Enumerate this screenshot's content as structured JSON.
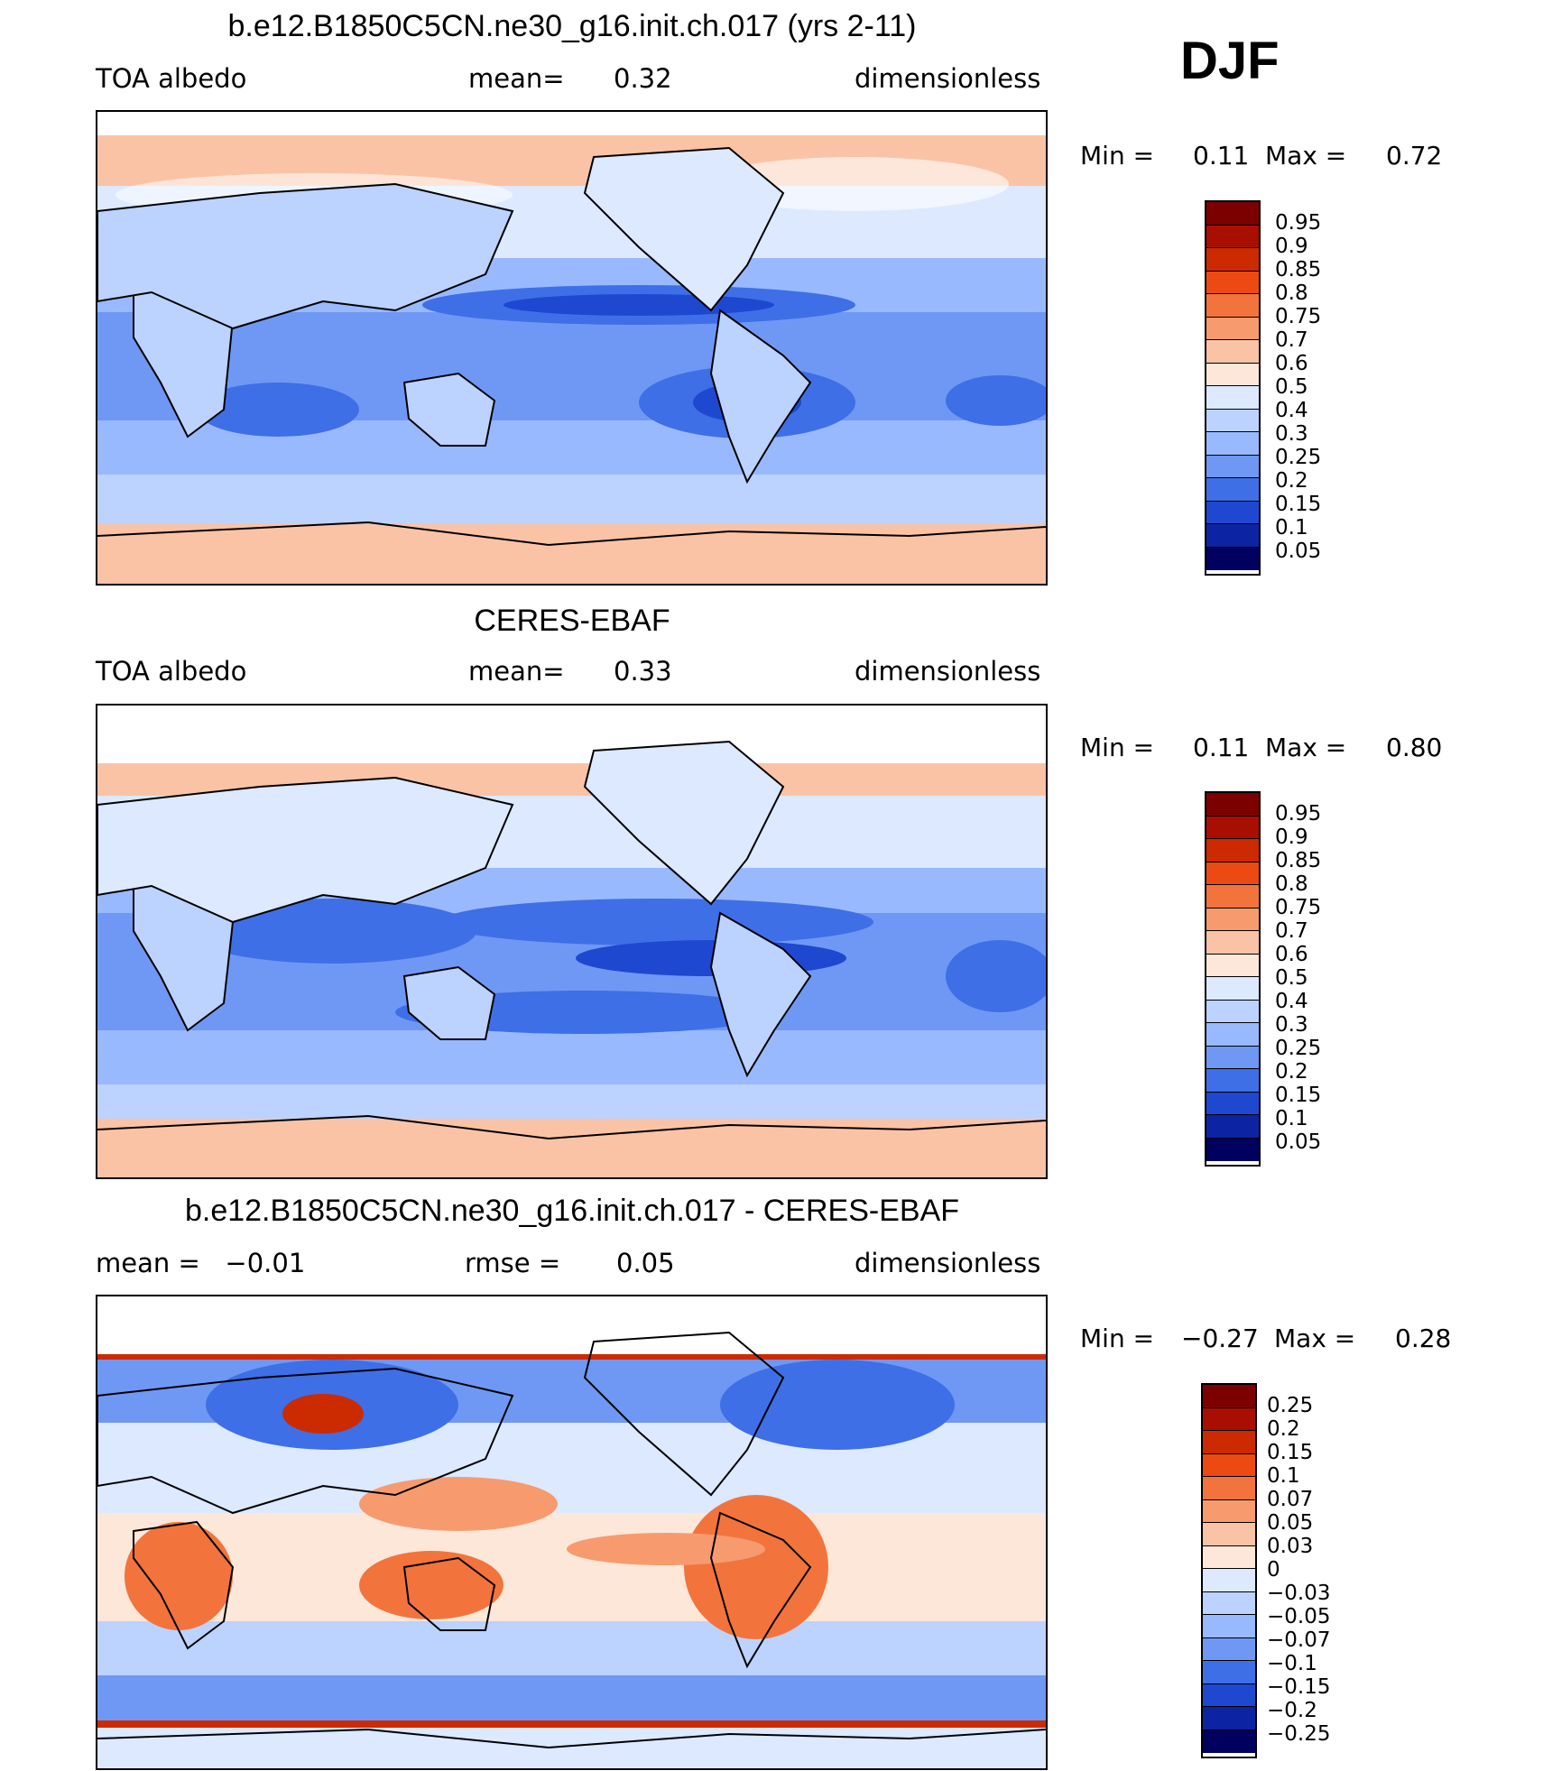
{
  "season": "DJF",
  "panels": [
    {
      "title": "b.e12.B1850C5CN.ne30_g16.init.ch.017 (yrs 2-11)",
      "left": "TOA albedo",
      "mid_label": "mean=",
      "mid_value": "0.32",
      "right": "dimensionless",
      "min_label": "Min =",
      "min_value": "0.11",
      "max_label": "Max =",
      "max_value": "0.72",
      "colorbar": {
        "levels": [
          "0.95",
          "0.9",
          "0.85",
          "0.8",
          "0.75",
          "0.7",
          "0.6",
          "0.5",
          "0.4",
          "0.3",
          "0.25",
          "0.2",
          "0.15",
          "0.1",
          "0.05"
        ],
        "colors": [
          "#7d0000",
          "#a80f00",
          "#cc2a00",
          "#ec4a12",
          "#f2743c",
          "#f79b6f",
          "#fbc3a5",
          "#fde7d9",
          "#dce9ff",
          "#bcd2ff",
          "#99b9ff",
          "#6f98f4",
          "#3f6fe6",
          "#1f48d0",
          "#0c24a3",
          "#00005e"
        ]
      }
    },
    {
      "title": "CERES-EBAF",
      "left": "TOA albedo",
      "mid_label": "mean=",
      "mid_value": "0.33",
      "right": "dimensionless",
      "min_label": "Min =",
      "min_value": "0.11",
      "max_label": "Max =",
      "max_value": "0.80",
      "colorbar": {
        "levels": [
          "0.95",
          "0.9",
          "0.85",
          "0.8",
          "0.75",
          "0.7",
          "0.6",
          "0.5",
          "0.4",
          "0.3",
          "0.25",
          "0.2",
          "0.15",
          "0.1",
          "0.05"
        ],
        "colors": [
          "#7d0000",
          "#a80f00",
          "#cc2a00",
          "#ec4a12",
          "#f2743c",
          "#f79b6f",
          "#fbc3a5",
          "#fde7d9",
          "#dce9ff",
          "#bcd2ff",
          "#99b9ff",
          "#6f98f4",
          "#3f6fe6",
          "#1f48d0",
          "#0c24a3",
          "#00005e"
        ]
      }
    },
    {
      "title": "b.e12.B1850C5CN.ne30_g16.init.ch.017 - CERES-EBAF",
      "left": "mean =   −0.01",
      "mid_label": "rmse =",
      "mid_value": "0.05",
      "right": "dimensionless",
      "min_label": "Min =",
      "min_value": "−0.27",
      "max_label": "Max =",
      "max_value": "0.28",
      "colorbar": {
        "levels": [
          "0.25",
          "0.2",
          "0.15",
          "0.1",
          "0.07",
          "0.05",
          "0.03",
          "0",
          "−0.03",
          "−0.05",
          "−0.07",
          "−0.1",
          "−0.15",
          "−0.2",
          "−0.25"
        ],
        "colors": [
          "#7d0000",
          "#a80f00",
          "#cc2a00",
          "#ec4a12",
          "#f2743c",
          "#f79b6f",
          "#fbc3a5",
          "#fde7d9",
          "#dce9ff",
          "#bcd2ff",
          "#99b9ff",
          "#6f98f4",
          "#3f6fe6",
          "#1f48d0",
          "#0c24a3",
          "#00005e"
        ]
      }
    }
  ]
}
